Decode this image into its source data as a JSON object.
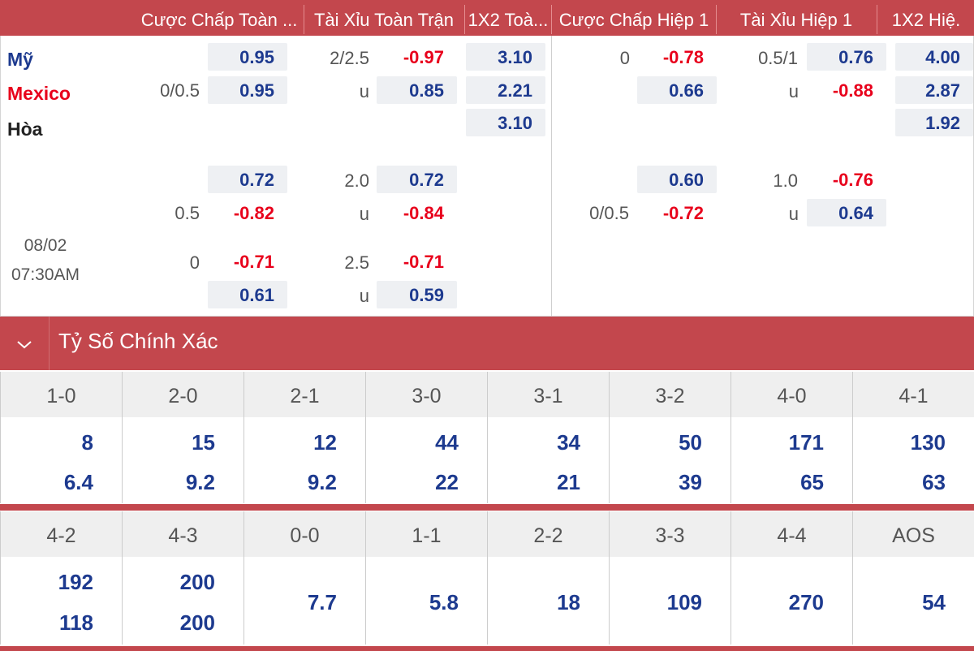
{
  "header": {
    "cols": [
      "Cược Chấp Toàn ...",
      "Tài Xỉu Toàn Trận",
      "1X2 Toà...",
      "Cược Chấp Hiệp 1",
      "Tài Xỉu Hiệp 1",
      "1X2 Hiệ."
    ]
  },
  "match": {
    "home": "Mỹ",
    "away": "Mexico",
    "draw": "Hòa",
    "date": "08/02",
    "time": "07:30AM"
  },
  "odds": {
    "r1": {
      "ft_hdp_line": "0/0.5",
      "ft_hdp_home": "0.95",
      "ft_hdp_away": "0.95",
      "ft_ou_line": "2/2.5",
      "ft_ou_u": "u",
      "ft_ou_over": "-0.97",
      "ft_ou_under": "0.85",
      "ft_1x2": [
        "3.10",
        "2.21",
        "3.10"
      ],
      "h1_hdp_line": "0",
      "h1_hdp_home": "-0.78",
      "h1_hdp_away": "0.66",
      "h1_ou_line": "0.5/1",
      "h1_ou_u": "u",
      "h1_ou_over": "0.76",
      "h1_ou_under": "-0.88",
      "h1_1x2": [
        "4.00",
        "2.87",
        "1.92"
      ]
    },
    "r2": {
      "ft_hdp_line": "0.5",
      "ft_hdp_home": "0.72",
      "ft_hdp_away": "-0.82",
      "ft_ou_line": "2.0",
      "ft_ou_u": "u",
      "ft_ou_over": "0.72",
      "ft_ou_under": "-0.84",
      "h1_hdp_line": "0/0.5",
      "h1_hdp_home": "0.60",
      "h1_hdp_away": "-0.72",
      "h1_ou_line": "1.0",
      "h1_ou_u": "u",
      "h1_ou_over": "-0.76",
      "h1_ou_under": "0.64"
    },
    "r3": {
      "ft_hdp_line": "0",
      "ft_hdp_home": "-0.71",
      "ft_hdp_away": "0.61",
      "ft_ou_line": "2.5",
      "ft_ou_u": "u",
      "ft_ou_over": "-0.71",
      "ft_ou_under": "0.59"
    }
  },
  "section": {
    "title": "Tỷ Số Chính Xác",
    "chevron_icon": "chevron-down-icon"
  },
  "correct_score": {
    "grid1": {
      "scores": [
        "1-0",
        "2-0",
        "2-1",
        "3-0",
        "3-1",
        "3-2",
        "4-0",
        "4-1"
      ],
      "home": [
        "8",
        "15",
        "12",
        "44",
        "34",
        "50",
        "171",
        "130"
      ],
      "away": [
        "6.4",
        "9.2",
        "9.2",
        "22",
        "21",
        "39",
        "65",
        "63"
      ]
    },
    "grid2": {
      "scores": [
        "4-2",
        "4-3",
        "0-0",
        "1-1",
        "2-2",
        "3-3",
        "4-4",
        "AOS"
      ],
      "home": [
        "192",
        "200"
      ],
      "away": [
        "118",
        "200"
      ],
      "single": [
        "7.7",
        "5.8",
        "18",
        "109",
        "270",
        "54"
      ]
    }
  },
  "colors": {
    "accent": "#c3474d",
    "odd_positive": "#1d3a8f",
    "odd_negative": "#e8001c",
    "cell_bg": "#eef0f3"
  }
}
